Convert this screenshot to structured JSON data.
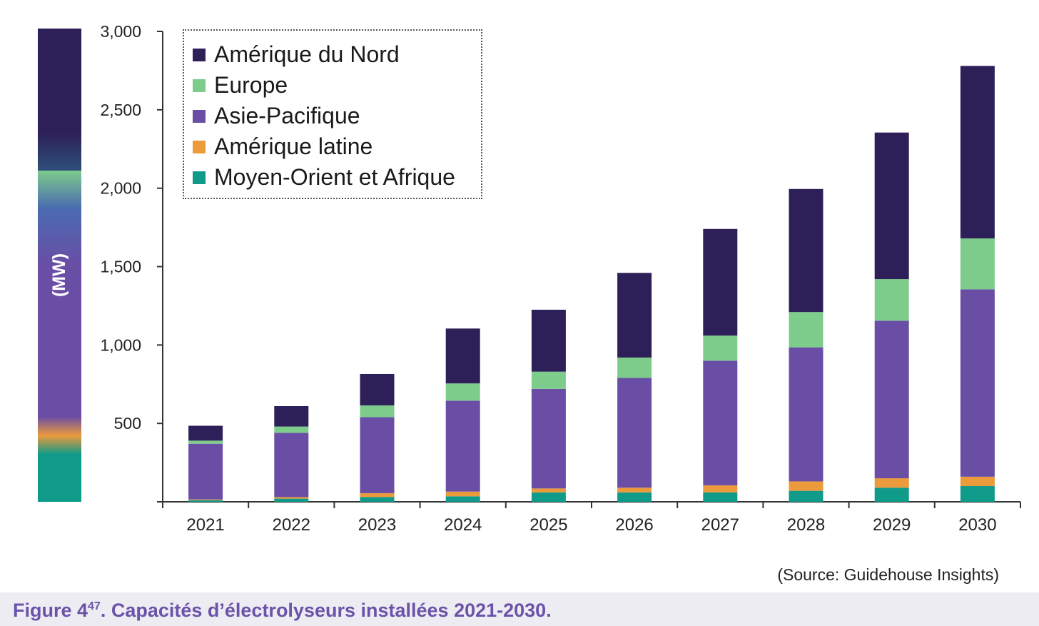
{
  "chart_data": {
    "type": "bar",
    "stacked": true,
    "title": "",
    "ylabel": "(MW)",
    "xlabel": "",
    "ylim": [
      0,
      3000
    ],
    "yticks": [
      "",
      "500",
      "1,000",
      "1,500",
      "2,000",
      "2,500",
      "3,000"
    ],
    "ytick_values": [
      0,
      500,
      1000,
      1500,
      2000,
      2500,
      3000
    ],
    "categories": [
      "2021",
      "2022",
      "2023",
      "2024",
      "2025",
      "2026",
      "2027",
      "2028",
      "2029",
      "2030"
    ],
    "series": [
      {
        "name": "Moyen-Orient et Afrique",
        "color": "#0f9a8a",
        "values": [
          10,
          20,
          30,
          35,
          60,
          60,
          60,
          70,
          90,
          100
        ]
      },
      {
        "name": "Amérique latine",
        "color": "#eb9a3c",
        "values": [
          5,
          10,
          25,
          30,
          25,
          30,
          45,
          60,
          60,
          60
        ]
      },
      {
        "name": "Asie-Pacifique",
        "color": "#6a4ea6",
        "values": [
          355,
          410,
          485,
          580,
          635,
          700,
          795,
          855,
          1005,
          1195
        ]
      },
      {
        "name": "Europe",
        "color": "#7dcc8c",
        "values": [
          20,
          40,
          75,
          110,
          110,
          130,
          160,
          225,
          265,
          325
        ]
      },
      {
        "name": "Amérique du Nord",
        "color": "#2d2058",
        "values": [
          95,
          130,
          200,
          350,
          395,
          540,
          680,
          785,
          935,
          1100
        ]
      }
    ],
    "legend_order": [
      "Amérique du Nord",
      "Europe",
      "Asie-Pacifique",
      "Amérique latine",
      "Moyen-Orient et Afrique"
    ],
    "legend_position": "top-left",
    "grid": false
  },
  "colorbar": {
    "label": "(MW)",
    "stops": [
      "#2d2058",
      "#2d2058",
      "#2f4f7a",
      "#7dcc8c",
      "#4a6bb0",
      "#6a4ea6",
      "#6a4ea6",
      "#eb9a3c",
      "#0f9a8a",
      "#0f9a8a"
    ]
  },
  "source": "(Source: Guidehouse Insights)",
  "caption": {
    "prefix": "Figure 4",
    "superscript": "47",
    "text": ". Capacités d’électrolyseurs installées 2021-2030."
  }
}
